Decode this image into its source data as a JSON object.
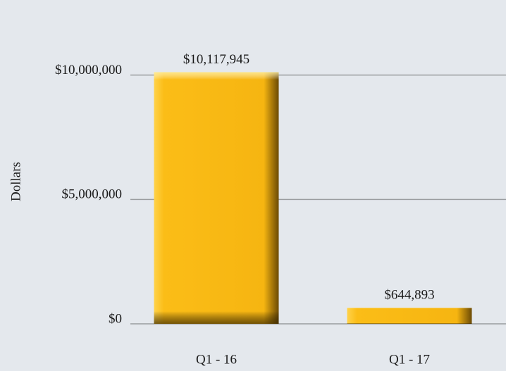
{
  "chart_data": {
    "type": "bar",
    "y_label": "Dollars",
    "categories": [
      "Q1 - 16",
      "Q1 - 17"
    ],
    "values": [
      10117945,
      644893
    ],
    "value_labels": [
      "$10,117,945",
      "$644,893"
    ],
    "color": "#f8b814",
    "ylim": [
      0,
      12000000
    ],
    "yticks": [
      {
        "value": 0,
        "label": "$0"
      },
      {
        "value": 5000000,
        "label": "$5,000,000"
      },
      {
        "value": 10000000,
        "label": "$10,000,000"
      }
    ],
    "grid": true
  }
}
